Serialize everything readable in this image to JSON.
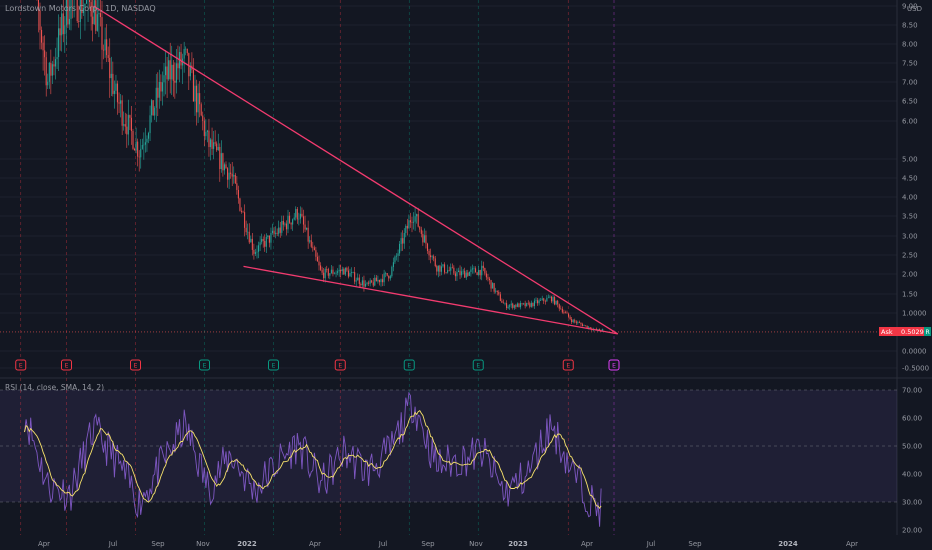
{
  "header": {
    "legend": "Lordstown Motors Corp., 1D, NASDAQ",
    "currency": "USD"
  },
  "ask": {
    "label": "Ask",
    "value": "0.5029",
    "badge": "R"
  },
  "rsi": {
    "legend": "RSI (14, close, SMA, 14, 2)"
  },
  "colors": {
    "background": "#131722",
    "rsi_band": "#7e57c2",
    "rsi_line": "#7e57c2",
    "rsi_sma": "#f7e26b",
    "trendline": "#f23b6f",
    "candle_up": "#26a69a",
    "candle_down": "#ef5350",
    "earnings_red": "#f23645",
    "earnings_green": "#089981",
    "earnings_future": "#e040fb"
  },
  "chart_data": [
    {
      "type": "candlestick",
      "y_ticks": [
        "-0.5000",
        "0.0000",
        "1.0000",
        "1.50",
        "2.00",
        "2.50",
        "3.00",
        "3.50",
        "4.00",
        "4.50",
        "5.00",
        "6.00",
        "6.50",
        "7.00",
        "7.50",
        "8.00",
        "8.50",
        "9.00"
      ],
      "x_ticks": [
        {
          "label": "Apr",
          "bold": false
        },
        {
          "label": "Jul",
          "bold": false
        },
        {
          "label": "Sep",
          "bold": false
        },
        {
          "label": "Nov",
          "bold": false
        },
        {
          "label": "2022",
          "bold": true
        },
        {
          "label": "Apr",
          "bold": false
        },
        {
          "label": "Jul",
          "bold": false
        },
        {
          "label": "Sep",
          "bold": false
        },
        {
          "label": "Nov",
          "bold": false
        },
        {
          "label": "2023",
          "bold": true
        },
        {
          "label": "Apr",
          "bold": false
        },
        {
          "label": "Jul",
          "bold": false
        },
        {
          "label": "Sep",
          "bold": false
        },
        {
          "label": "2024",
          "bold": true
        },
        {
          "label": "Apr",
          "bold": false
        }
      ],
      "price_path": [
        {
          "date": "2021-03",
          "value": 11.5
        },
        {
          "date": "2021-04",
          "value": 7.0
        },
        {
          "date": "2021-05",
          "value": 9.2
        },
        {
          "date": "2021-06",
          "value": 9.0
        },
        {
          "date": "2021-07",
          "value": 6.6
        },
        {
          "date": "2021-08",
          "value": 5.2
        },
        {
          "date": "2021-09",
          "value": 7.0
        },
        {
          "date": "2021-10",
          "value": 7.6
        },
        {
          "date": "2021-11",
          "value": 5.4
        },
        {
          "date": "2021-12",
          "value": 4.6
        },
        {
          "date": "2022-01",
          "value": 2.6
        },
        {
          "date": "2022-02",
          "value": 3.1
        },
        {
          "date": "2022-03",
          "value": 3.6
        },
        {
          "date": "2022-04",
          "value": 2.0
        },
        {
          "date": "2022-05",
          "value": 2.1
        },
        {
          "date": "2022-06",
          "value": 1.7
        },
        {
          "date": "2022-07",
          "value": 2.0
        },
        {
          "date": "2022-08",
          "value": 3.6
        },
        {
          "date": "2022-09",
          "value": 2.2
        },
        {
          "date": "2022-10",
          "value": 2.0
        },
        {
          "date": "2022-11",
          "value": 2.1
        },
        {
          "date": "2022-12",
          "value": 1.2
        },
        {
          "date": "2023-01",
          "value": 1.2
        },
        {
          "date": "2023-02",
          "value": 1.4
        },
        {
          "date": "2023-03",
          "value": 0.8
        },
        {
          "date": "2023-04",
          "value": 0.55
        }
      ],
      "earnings_markers": [
        {
          "date": "2021-03",
          "kind": "red"
        },
        {
          "date": "2021-05",
          "kind": "red"
        },
        {
          "date": "2021-08",
          "kind": "red"
        },
        {
          "date": "2021-11",
          "kind": "green"
        },
        {
          "date": "2022-02",
          "kind": "green"
        },
        {
          "date": "2022-05",
          "kind": "red"
        },
        {
          "date": "2022-08",
          "kind": "green"
        },
        {
          "date": "2022-11",
          "kind": "green"
        },
        {
          "date": "2023-03",
          "kind": "red"
        },
        {
          "date": "2023-05",
          "kind": "future"
        }
      ],
      "ask_price": 0.5029
    },
    {
      "type": "line",
      "title": "RSI (14, close, SMA, 14, 2)",
      "y_ticks": [
        "20.00",
        "30.00",
        "40.00",
        "50.00",
        "60.00",
        "70.00"
      ],
      "band": [
        30,
        70
      ],
      "rsi_path": [
        {
          "date": "2021-03",
          "value": 62
        },
        {
          "date": "2021-04",
          "value": 36
        },
        {
          "date": "2021-05",
          "value": 33
        },
        {
          "date": "2021-06",
          "value": 56
        },
        {
          "date": "2021-07",
          "value": 45
        },
        {
          "date": "2021-08",
          "value": 30
        },
        {
          "date": "2021-09",
          "value": 44
        },
        {
          "date": "2021-10",
          "value": 57
        },
        {
          "date": "2021-11",
          "value": 35
        },
        {
          "date": "2021-12",
          "value": 47
        },
        {
          "date": "2022-01",
          "value": 34
        },
        {
          "date": "2022-02",
          "value": 44
        },
        {
          "date": "2022-03",
          "value": 51
        },
        {
          "date": "2022-04",
          "value": 36
        },
        {
          "date": "2022-05",
          "value": 48
        },
        {
          "date": "2022-06",
          "value": 41
        },
        {
          "date": "2022-07",
          "value": 48
        },
        {
          "date": "2022-08",
          "value": 66
        },
        {
          "date": "2022-09",
          "value": 43
        },
        {
          "date": "2022-10",
          "value": 45
        },
        {
          "date": "2022-11",
          "value": 48
        },
        {
          "date": "2022-12",
          "value": 33
        },
        {
          "date": "2023-01",
          "value": 40
        },
        {
          "date": "2023-02",
          "value": 58
        },
        {
          "date": "2023-03",
          "value": 41
        },
        {
          "date": "2023-04",
          "value": 28
        }
      ]
    }
  ]
}
